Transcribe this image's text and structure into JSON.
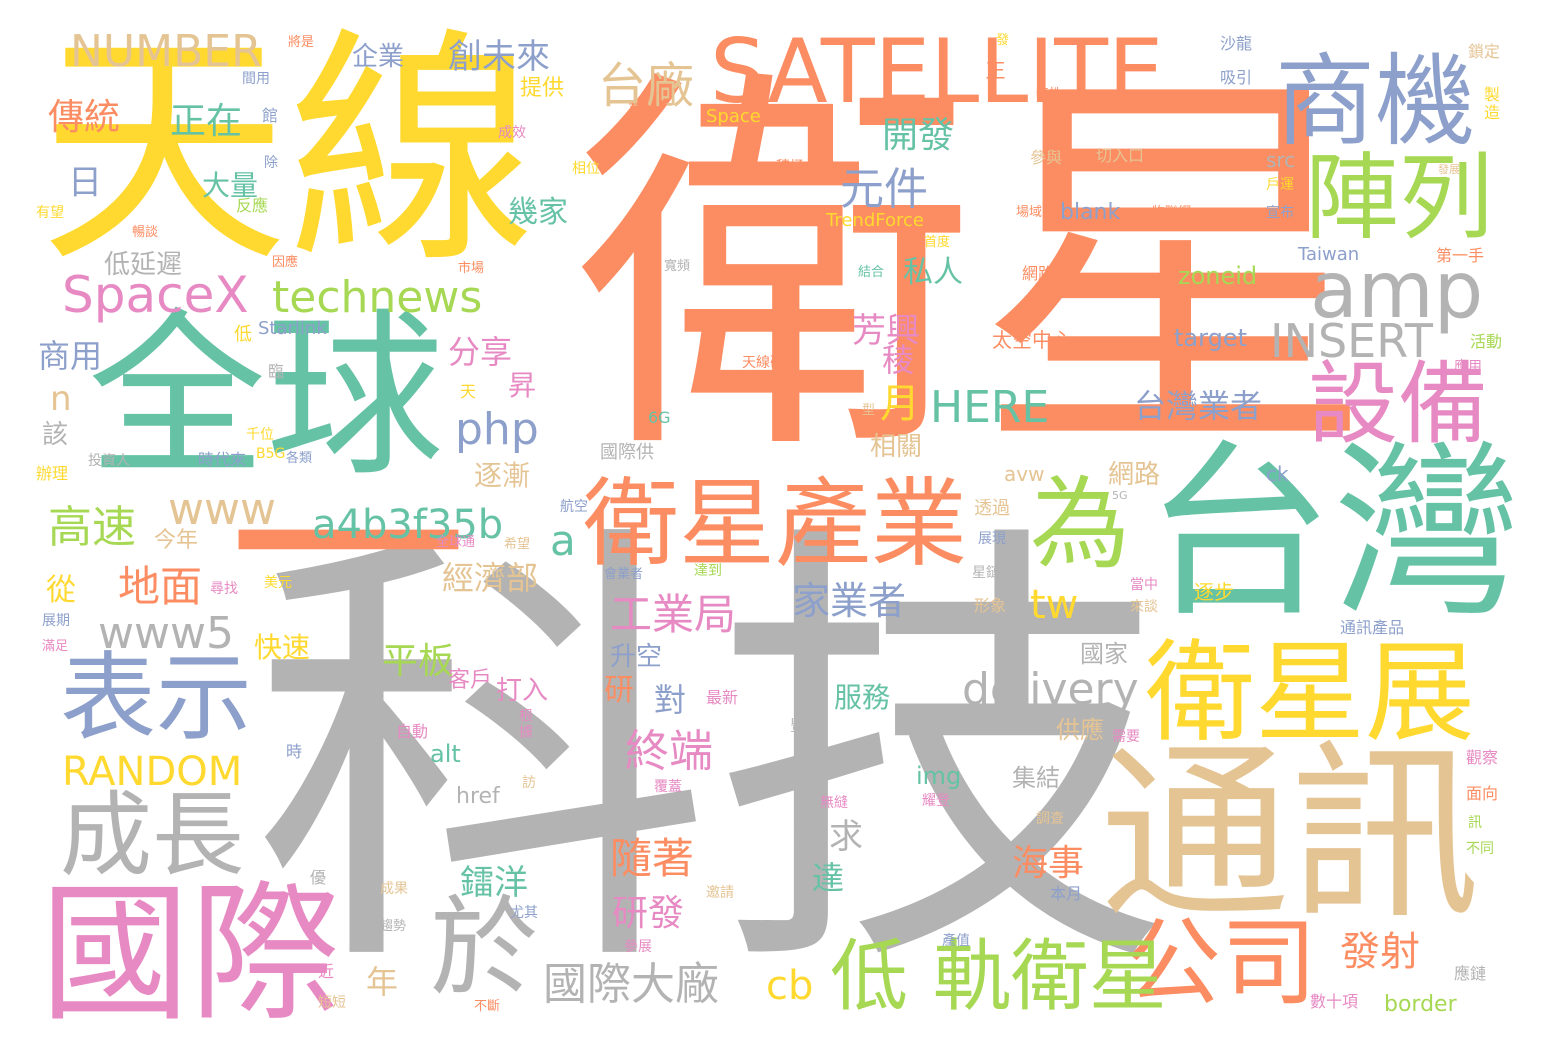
{
  "palette": {
    "orange": "#fc8d62",
    "teal": "#66c2a5",
    "blue": "#8da0cb",
    "pink": "#e78ac3",
    "green": "#a6d854",
    "yellow": "#ffd92f",
    "tan": "#e5c494",
    "gray": "#b3b3b3"
  },
  "words": [
    {
      "text": "衛星",
      "color": "#fc8d62"
    },
    {
      "text": "科技",
      "color": "#b3b3b3"
    },
    {
      "text": "天線",
      "color": "#ffd92f"
    },
    {
      "text": "全球",
      "color": "#66c2a5"
    },
    {
      "text": "台灣",
      "color": "#66c2a5"
    },
    {
      "text": "通訊",
      "color": "#e5c494"
    },
    {
      "text": "國際",
      "color": "#e78ac3"
    },
    {
      "text": "一",
      "color": "#fc8d62"
    },
    {
      "text": "SATELLITE",
      "color": "#fc8d62"
    },
    {
      "text": "商機",
      "color": "#8da0cb"
    },
    {
      "text": "陣列",
      "color": "#a6d854"
    },
    {
      "text": "amp",
      "color": "#b3b3b3"
    },
    {
      "text": "設備",
      "color": "#e78ac3"
    },
    {
      "text": "衛星展",
      "color": "#ffd92f"
    },
    {
      "text": "衛星產業",
      "color": "#fc8d62"
    },
    {
      "text": "為",
      "color": "#a6d854"
    },
    {
      "text": "表示",
      "color": "#8da0cb"
    },
    {
      "text": "成長",
      "color": "#b3b3b3"
    },
    {
      "text": "於",
      "color": "#b3b3b3"
    },
    {
      "text": "公司",
      "color": "#fc8d62"
    },
    {
      "text": "低 軌衛星",
      "color": "#a6d854"
    },
    {
      "text": "NUMBER",
      "color": "#e5c494"
    },
    {
      "text": "台廠",
      "color": "#e5c494"
    },
    {
      "text": "創未來",
      "color": "#8da0cb"
    },
    {
      "text": "企業",
      "color": "#8da0cb"
    },
    {
      "text": "傳統",
      "color": "#fc8d62"
    },
    {
      "text": "正在",
      "color": "#66c2a5"
    },
    {
      "text": "開發",
      "color": "#66c2a5"
    },
    {
      "text": "元件",
      "color": "#8da0cb"
    },
    {
      "text": "SpaceX",
      "color": "#e78ac3"
    },
    {
      "text": "technews",
      "color": "#a6d854"
    },
    {
      "text": "INSERT",
      "color": "#b3b3b3"
    },
    {
      "text": "HERE",
      "color": "#66c2a5"
    },
    {
      "text": "台灣業者",
      "color": "#8da0cb"
    },
    {
      "text": "php",
      "color": "#8da0cb"
    },
    {
      "text": "www",
      "color": "#e5c494"
    },
    {
      "text": "a4b3f35b",
      "color": "#66c2a5"
    },
    {
      "text": "a",
      "color": "#66c2a5"
    },
    {
      "text": "高速",
      "color": "#a6d854"
    },
    {
      "text": "地面",
      "color": "#fc8d62"
    },
    {
      "text": "www5",
      "color": "#b3b3b3"
    },
    {
      "text": "工業局",
      "color": "#e78ac3"
    },
    {
      "text": "經濟部",
      "color": "#e5c494"
    },
    {
      "text": "家業者",
      "color": "#8da0cb"
    },
    {
      "text": "tw",
      "color": "#ffd92f"
    },
    {
      "text": "RANDOM",
      "color": "#ffd92f"
    },
    {
      "text": "delivery",
      "color": "#b3b3b3"
    },
    {
      "text": "終端",
      "color": "#e78ac3"
    },
    {
      "text": "隨著",
      "color": "#fc8d62"
    },
    {
      "text": "國際大廠",
      "color": "#b3b3b3"
    },
    {
      "text": "cb",
      "color": "#ffd92f"
    },
    {
      "text": "發射",
      "color": "#fc8d62"
    },
    {
      "text": "海事",
      "color": "#fc8d62"
    },
    {
      "text": "需求",
      "color": "#b3b3b3"
    },
    {
      "text": "鐳洋",
      "color": "#66c2a5"
    },
    {
      "text": "研發",
      "color": "#e78ac3"
    },
    {
      "text": "平板",
      "color": "#a6d854"
    },
    {
      "text": "日",
      "color": "#8da0cb"
    },
    {
      "text": "大量",
      "color": "#66c2a5"
    },
    {
      "text": "幾家",
      "color": "#66c2a5"
    },
    {
      "text": "低延遲",
      "color": "#b3b3b3"
    },
    {
      "text": "商用",
      "color": "#8da0cb"
    },
    {
      "text": "分享",
      "color": "#e78ac3"
    },
    {
      "text": "昇",
      "color": "#e78ac3"
    },
    {
      "text": "芳興",
      "color": "#e78ac3"
    },
    {
      "text": "私人",
      "color": "#66c2a5"
    },
    {
      "text": "稜",
      "color": "#e78ac3"
    },
    {
      "text": "月",
      "color": "#ffd92f"
    },
    {
      "text": "提供",
      "color": "#ffd92f"
    },
    {
      "text": "n",
      "color": "#e5c494"
    },
    {
      "text": "該",
      "color": "#b3b3b3"
    },
    {
      "text": "逐漸",
      "color": "#e5c494"
    },
    {
      "text": "今年",
      "color": "#e5c494"
    },
    {
      "text": "從",
      "color": "#ffd92f"
    },
    {
      "text": "快速",
      "color": "#ffd92f"
    },
    {
      "text": "升空",
      "color": "#8da0cb"
    },
    {
      "text": "研",
      "color": "#fc8d62"
    },
    {
      "text": "對",
      "color": "#8da0cb"
    },
    {
      "text": "服務",
      "color": "#66c2a5"
    },
    {
      "text": "打入",
      "color": "#e78ac3"
    },
    {
      "text": "客戶",
      "color": "#e78ac3"
    },
    {
      "text": "年",
      "color": "#e5c494"
    },
    {
      "text": "達",
      "color": "#66c2a5"
    },
    {
      "text": "網路",
      "color": "#e5c494"
    },
    {
      "text": "相關",
      "color": "#e5c494"
    },
    {
      "text": "國家",
      "color": "#b3b3b3"
    },
    {
      "text": "供應",
      "color": "#e5c494"
    },
    {
      "text": "集結",
      "color": "#b3b3b3"
    },
    {
      "text": "img",
      "color": "#66c2a5"
    },
    {
      "text": "alt",
      "color": "#66c2a5"
    },
    {
      "text": "href",
      "color": "#b3b3b3"
    },
    {
      "text": "zoneid",
      "color": "#a6d854"
    },
    {
      "text": "target",
      "color": "#8da0cb"
    },
    {
      "text": "blank",
      "color": "#8da0cb"
    },
    {
      "text": "src",
      "color": "#b3b3b3"
    },
    {
      "text": "avw",
      "color": "#e5c494"
    },
    {
      "text": "ck",
      "color": "#8da0cb"
    },
    {
      "text": "border",
      "color": "#a6d854"
    },
    {
      "text": "Starlink",
      "color": "#8da0cb"
    },
    {
      "text": "TrendForce",
      "color": "#ffd92f"
    },
    {
      "text": "Taiwan",
      "color": "#8da0cb"
    },
    {
      "text": "Space",
      "color": "#ffd92f"
    },
    {
      "text": "6G",
      "color": "#66c2a5"
    },
    {
      "text": "B5G",
      "color": "#ffd92f"
    },
    {
      "text": "5G",
      "color": "#b3b3b3"
    },
    {
      "text": "太空中心",
      "color": "#fc8d62"
    },
    {
      "text": "網路訂",
      "color": "#fc8d62"
    },
    {
      "text": "天線研",
      "color": "#fc8d62"
    },
    {
      "text": "切入口",
      "color": "#e5c494"
    },
    {
      "text": "參與",
      "color": "#e5c494"
    },
    {
      "text": "物聯網",
      "color": "#fc8d62"
    },
    {
      "text": "場域",
      "color": "#fc8d62"
    },
    {
      "text": "正",
      "color": "#fc8d62"
    },
    {
      "text": "特性",
      "color": "#fc8d62"
    },
    {
      "text": "發",
      "color": "#ffd92f"
    },
    {
      "text": "沙龍",
      "color": "#8da0cb"
    },
    {
      "text": "吸引",
      "color": "#8da0cb"
    },
    {
      "text": "駕駛",
      "color": "#fc8d62"
    },
    {
      "text": "鎖定",
      "color": "#e5c494"
    },
    {
      "text": "製造",
      "color": "#ffd92f"
    },
    {
      "text": "發展",
      "color": "#e5c494"
    },
    {
      "text": "戶運",
      "color": "#ffd92f"
    },
    {
      "text": "宣布",
      "color": "#8da0cb"
    },
    {
      "text": "第一手",
      "color": "#fc8d62"
    },
    {
      "text": "活動",
      "color": "#a6d854"
    },
    {
      "text": "應用",
      "color": "#e78ac3"
    },
    {
      "text": "觀察",
      "color": "#e78ac3"
    },
    {
      "text": "面向",
      "color": "#fc8d62"
    },
    {
      "text": "訊",
      "color": "#a6d854"
    },
    {
      "text": "不同",
      "color": "#a6d854"
    },
    {
      "text": "通訊產品",
      "color": "#8da0cb"
    },
    {
      "text": "逐步",
      "color": "#ffd92f"
    },
    {
      "text": "當中",
      "color": "#e78ac3"
    },
    {
      "text": "來談",
      "color": "#e5c494"
    },
    {
      "text": "形象",
      "color": "#e5c494"
    },
    {
      "text": "星鏈",
      "color": "#b3b3b3"
    },
    {
      "text": "展現",
      "color": "#8da0cb"
    },
    {
      "text": "透過",
      "color": "#e5c494"
    },
    {
      "text": "需要",
      "color": "#e78ac3"
    },
    {
      "text": "豐碩",
      "color": "#b3b3b3"
    },
    {
      "text": "最新",
      "color": "#e78ac3"
    },
    {
      "text": "根據",
      "color": "#e78ac3"
    },
    {
      "text": "自動",
      "color": "#e78ac3"
    },
    {
      "text": "無縫",
      "color": "#e78ac3"
    },
    {
      "text": "耀登",
      "color": "#e78ac3"
    },
    {
      "text": "調查",
      "color": "#e5c494"
    },
    {
      "text": "本月",
      "color": "#8da0cb"
    },
    {
      "text": "應鏈",
      "color": "#b3b3b3"
    },
    {
      "text": "數十項",
      "color": "#e78ac3"
    },
    {
      "text": "產值",
      "color": "#8da0cb"
    },
    {
      "text": "邀請",
      "color": "#e5c494"
    },
    {
      "text": "尤其",
      "color": "#8da0cb"
    },
    {
      "text": "參展",
      "color": "#e78ac3"
    },
    {
      "text": "覆蓋",
      "color": "#e78ac3"
    },
    {
      "text": "訪",
      "color": "#e5c494"
    },
    {
      "text": "達到",
      "color": "#a6d854"
    },
    {
      "text": "會業者",
      "color": "#8da0cb"
    },
    {
      "text": "航空",
      "color": "#8da0cb"
    },
    {
      "text": "國際供",
      "color": "#b3b3b3"
    },
    {
      "text": "美元",
      "color": "#ffd92f"
    },
    {
      "text": "尋找",
      "color": "#e78ac3"
    },
    {
      "text": "時代來",
      "color": "#8da0cb"
    },
    {
      "text": "投資人",
      "color": "#b3b3b3"
    },
    {
      "text": "千位",
      "color": "#ffd92f"
    },
    {
      "text": "辦理",
      "color": "#ffd92f"
    },
    {
      "text": "各類",
      "color": "#8da0cb"
    },
    {
      "text": "全球通",
      "color": "#e78ac3"
    },
    {
      "text": "希望",
      "color": "#e5c494"
    },
    {
      "text": "展期",
      "color": "#8da0cb"
    },
    {
      "text": "滿足",
      "color": "#e78ac3"
    },
    {
      "text": "時",
      "color": "#8da0cb"
    },
    {
      "text": "成果",
      "color": "#e5c494"
    },
    {
      "text": "優",
      "color": "#b3b3b3"
    },
    {
      "text": "趨勢",
      "color": "#b3b3b3"
    },
    {
      "text": "近",
      "color": "#e78ac3"
    },
    {
      "text": "短短",
      "color": "#e5c494"
    },
    {
      "text": "不斷",
      "color": "#fc8d62"
    },
    {
      "text": "臨",
      "color": "#b3b3b3"
    },
    {
      "text": "低",
      "color": "#ffd92f"
    },
    {
      "text": "天",
      "color": "#ffd92f"
    },
    {
      "text": "參",
      "color": "#fc8d62"
    },
    {
      "text": "型",
      "color": "#e5c494"
    },
    {
      "text": "因應",
      "color": "#fc8d62"
    },
    {
      "text": "市場",
      "color": "#fc8d62"
    },
    {
      "text": "寬頻",
      "color": "#b3b3b3"
    },
    {
      "text": "新興",
      "color": "#fc8d62"
    },
    {
      "text": "結合",
      "color": "#66c2a5"
    },
    {
      "text": "首度",
      "color": "#ffd92f"
    },
    {
      "text": "積極",
      "color": "#fc8d62"
    },
    {
      "text": "相位",
      "color": "#ffd92f"
    },
    {
      "text": "成效",
      "color": "#e78ac3"
    },
    {
      "text": "萬",
      "color": "#fc8d62"
    },
    {
      "text": "反應",
      "color": "#a6d854"
    },
    {
      "text": "有望",
      "color": "#ffd92f"
    },
    {
      "text": "暢談",
      "color": "#fc8d62"
    },
    {
      "text": "除",
      "color": "#8da0cb"
    },
    {
      "text": "館",
      "color": "#8da0cb"
    },
    {
      "text": "間用",
      "color": "#8da0cb"
    },
    {
      "text": "將是",
      "color": "#fc8d62"
    }
  ]
}
